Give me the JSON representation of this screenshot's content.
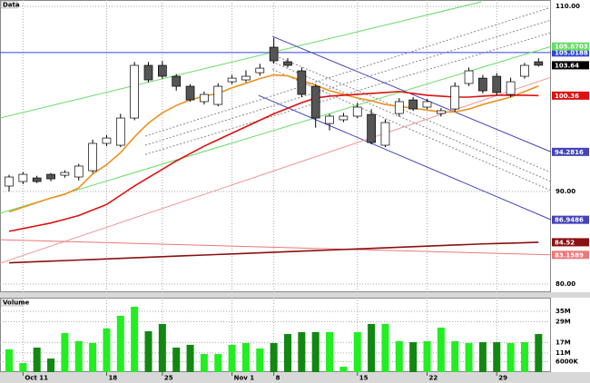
{
  "chart_data": [
    {
      "type": "candlestick",
      "title": "Data",
      "open": [
        90.59,
        91.08,
        91.47,
        91.86,
        91.76,
        91.57,
        92.25,
        95.2,
        95.0,
        97.94,
        103.63,
        103.63,
        102.45,
        101.37,
        99.71,
        99.41,
        101.86,
        102.06,
        102.84,
        105.59,
        104.02,
        103.04,
        101.37,
        97.35,
        97.75,
        98.14,
        98.33,
        95.0,
        98.43,
        99.9,
        99.12,
        98.43,
        98.92,
        101.67,
        102.25,
        102.45,
        100.49,
        102.45,
        104.02
      ],
      "high": [
        91.8,
        92.1,
        91.7,
        92.0,
        92.3,
        93.0,
        95.6,
        96.1,
        98.4,
        104.0,
        104.0,
        104.1,
        102.7,
        101.6,
        100.8,
        101.7,
        102.6,
        103.1,
        103.8,
        106.6,
        104.4,
        103.4,
        101.6,
        98.4,
        98.5,
        99.6,
        98.9,
        97.8,
        100.1,
        100.2,
        100.0,
        99.0,
        101.8,
        103.4,
        102.6,
        102.8,
        102.3,
        103.9,
        104.4
      ],
      "low": [
        90.0,
        90.8,
        90.9,
        91.1,
        91.5,
        91.2,
        92.0,
        94.9,
        94.8,
        97.7,
        101.8,
        102.2,
        100.9,
        99.7,
        99.4,
        99.2,
        101.6,
        101.8,
        102.5,
        103.8,
        103.4,
        100.2,
        96.9,
        96.6,
        97.5,
        97.9,
        95.1,
        94.8,
        98.1,
        98.7,
        98.9,
        98.1,
        98.6,
        101.4,
        100.6,
        100.4,
        100.2,
        102.2,
        103.5
      ],
      "close": [
        91.57,
        91.86,
        91.08,
        91.37,
        92.06,
        92.75,
        95.2,
        95.78,
        97.94,
        103.63,
        102.06,
        102.45,
        101.37,
        99.9,
        100.49,
        101.37,
        102.25,
        102.45,
        103.33,
        104.12,
        103.63,
        100.49,
        97.94,
        98.14,
        98.14,
        99.12,
        95.29,
        97.45,
        99.71,
        98.92,
        99.71,
        98.73,
        101.37,
        103.04,
        100.88,
        100.69,
        101.86,
        103.63,
        103.64
      ],
      "up_color": "#ffffff",
      "down_color": "#555555",
      "close_label": true,
      "series": [
        {
          "color": "#f09020",
          "last_label": false,
          "values": [
            87.8,
            88.3,
            88.8,
            89.3,
            89.7,
            90.4,
            91.9,
            92.9,
            94.2,
            95.9,
            97.4,
            98.5,
            99.3,
            99.9,
            100.3,
            100.6,
            101.2,
            101.7,
            102.2,
            102.6,
            102.5,
            102.0,
            101.5,
            100.9,
            100.5,
            100.1,
            99.8,
            99.4,
            99.2,
            99.0,
            98.8,
            98.6,
            98.6,
            98.9,
            99.4,
            99.8,
            100.2,
            100.8,
            101.4
          ]
        },
        {
          "color": "#dd1111",
          "last_label": true,
          "values": [
            85.7,
            86.0,
            86.3,
            86.6,
            87.0,
            87.4,
            88.0,
            88.6,
            89.6,
            90.6,
            91.5,
            92.4,
            93.3,
            94.1,
            94.9,
            95.6,
            96.3,
            97.0,
            97.7,
            98.4,
            99.0,
            99.6,
            100.1,
            100.3,
            100.4,
            100.5,
            100.6,
            100.7,
            100.8,
            100.6,
            100.4,
            100.3,
            100.2,
            100.2,
            100.3,
            100.4,
            100.4,
            100.4,
            100.36
          ]
        },
        {
          "color": "#8b1010",
          "last_label": true,
          "values": [
            82.3,
            82.36,
            82.42,
            82.48,
            82.54,
            82.6,
            82.66,
            82.72,
            82.78,
            82.84,
            82.9,
            82.96,
            83.02,
            83.08,
            83.14,
            83.2,
            83.26,
            83.32,
            83.38,
            83.44,
            83.5,
            83.56,
            83.62,
            83.68,
            83.74,
            83.8,
            83.86,
            83.92,
            83.98,
            84.04,
            84.1,
            84.16,
            84.22,
            84.28,
            84.34,
            84.38,
            84.42,
            84.47,
            84.52
          ]
        }
      ],
      "trendlines": [
        {
          "color": "#3344dd",
          "dash": false,
          "label": true,
          "x": [
            -0.65,
            38.9
          ],
          "y": [
            105.0188,
            105.0188
          ]
        },
        {
          "color": "#66dd66",
          "dash": false,
          "label": false,
          "x": [
            -0.65,
            33.9
          ],
          "y": [
            97.94,
            110.49
          ]
        },
        {
          "color": "#66dd66",
          "dash": false,
          "label": true,
          "x": [
            -0.65,
            38.9
          ],
          "y": [
            87.65,
            105.6703
          ]
        },
        {
          "color": "#888888",
          "dash": true,
          "label": false,
          "x": [
            9.77,
            38.9
          ],
          "y": [
            95.98,
            109.9
          ]
        },
        {
          "color": "#888888",
          "dash": true,
          "label": false,
          "x": [
            9.77,
            38.9
          ],
          "y": [
            95.0,
            108.53
          ]
        },
        {
          "color": "#888888",
          "dash": true,
          "label": false,
          "x": [
            9.77,
            38.9
          ],
          "y": [
            94.0,
            107.16
          ]
        },
        {
          "color": "#888888",
          "dash": true,
          "label": false,
          "x": [
            18.9,
            38.9
          ],
          "y": [
            104.8,
            92.06
          ]
        },
        {
          "color": "#888888",
          "dash": true,
          "label": false,
          "x": [
            18.9,
            38.9
          ],
          "y": [
            104.0,
            91.08
          ]
        },
        {
          "color": "#888888",
          "dash": true,
          "label": false,
          "x": [
            18.9,
            38.9
          ],
          "y": [
            103.2,
            90.1
          ]
        },
        {
          "color": "#4444bb",
          "dash": false,
          "label": true,
          "x": [
            18.9,
            38.9
          ],
          "y": [
            106.76,
            94.2816
          ]
        },
        {
          "color": "#4444bb",
          "dash": false,
          "label": true,
          "x": [
            17.9,
            38.9
          ],
          "y": [
            100.39,
            86.9486
          ]
        },
        {
          "color": "#ee9999",
          "dash": false,
          "label": false,
          "x": [
            -0.65,
            38.9
          ],
          "y": [
            82.25,
            102.35
          ]
        },
        {
          "color": "#ee7777",
          "dash": false,
          "label": true,
          "x": [
            -0.65,
            38.9
          ],
          "y": [
            84.8,
            83.1589
          ]
        }
      ],
      "ylim": [
        79.12,
        110.69
      ],
      "yticks": [
        {
          "value": 110,
          "label": "110.00"
        },
        {
          "value": 90,
          "label": "90.00"
        },
        {
          "value": 80,
          "label": "80.00"
        }
      ],
      "grid": true
    },
    {
      "type": "bar",
      "title": "Volume",
      "categories": [
        null,
        "Oct 11",
        null,
        null,
        null,
        null,
        null,
        "18",
        null,
        null,
        null,
        "25",
        null,
        null,
        null,
        null,
        "Nov 1",
        null,
        null,
        "8",
        null,
        null,
        null,
        null,
        null,
        "15",
        null,
        null,
        null,
        null,
        "22",
        null,
        null,
        null,
        null,
        "29",
        null,
        null,
        null
      ],
      "values": [
        13100000,
        5200000,
        14100000,
        7800000,
        22500000,
        17800000,
        16700000,
        25100000,
        32400000,
        37600000,
        23500000,
        27700000,
        14100000,
        15700000,
        10400000,
        10400000,
        15700000,
        16700000,
        13600000,
        16700000,
        21900000,
        23000000,
        23000000,
        23000000,
        3100000,
        23000000,
        27700000,
        27700000,
        17800000,
        17200000,
        17800000,
        25600000,
        17800000,
        16700000,
        17200000,
        17200000,
        16700000,
        17200000,
        21900000
      ],
      "up_color": "#22ee22",
      "down_color": "#118811",
      "ylim": [
        0,
        42800000
      ],
      "yticks": [
        {
          "value": 35000000,
          "label": "35M"
        },
        {
          "value": 29000000,
          "label": "29M"
        },
        {
          "value": 17000000,
          "label": "17M"
        },
        {
          "value": 11000000,
          "label": "11M"
        },
        {
          "value": 6000000,
          "label": "6000K"
        }
      ],
      "grid": true
    }
  ]
}
